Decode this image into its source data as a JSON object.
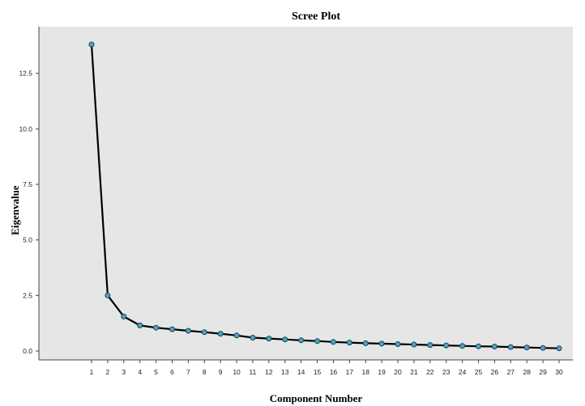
{
  "chart_data": {
    "type": "line",
    "title": "Scree Plot",
    "xlabel": "Component Number",
    "ylabel": "Eigenvalue",
    "x": [
      1,
      2,
      3,
      4,
      5,
      6,
      7,
      8,
      9,
      10,
      11,
      12,
      13,
      14,
      15,
      16,
      17,
      18,
      19,
      20,
      21,
      22,
      23,
      24,
      25,
      26,
      27,
      28,
      29,
      30
    ],
    "x_tick_labels": [
      "1",
      "2",
      "3",
      "4",
      "5",
      "6",
      "7",
      "8",
      "9",
      "10",
      "11",
      "12",
      "13",
      "14",
      "15",
      "16",
      "17",
      "18",
      "19",
      "20",
      "21",
      "22",
      "23",
      "24",
      "25",
      "26",
      "27",
      "28",
      "29",
      "30"
    ],
    "values": [
      13.8,
      2.5,
      1.55,
      1.15,
      1.05,
      0.98,
      0.91,
      0.85,
      0.78,
      0.7,
      0.6,
      0.56,
      0.52,
      0.48,
      0.45,
      0.41,
      0.38,
      0.35,
      0.33,
      0.31,
      0.29,
      0.27,
      0.25,
      0.23,
      0.21,
      0.2,
      0.18,
      0.16,
      0.14,
      0.12
    ],
    "y_ticks": [
      0,
      2.5,
      5,
      7.5,
      10,
      12.5
    ],
    "y_tick_labels": [
      "0.0",
      "2.5",
      "5.0",
      "7.5",
      "10.0",
      "12.5"
    ],
    "ylim": [
      -0.4,
      14.6
    ],
    "grid": false,
    "line_color": "#000000",
    "marker_color": "#4aa6c8",
    "plot_background": "#e6e6e6"
  }
}
